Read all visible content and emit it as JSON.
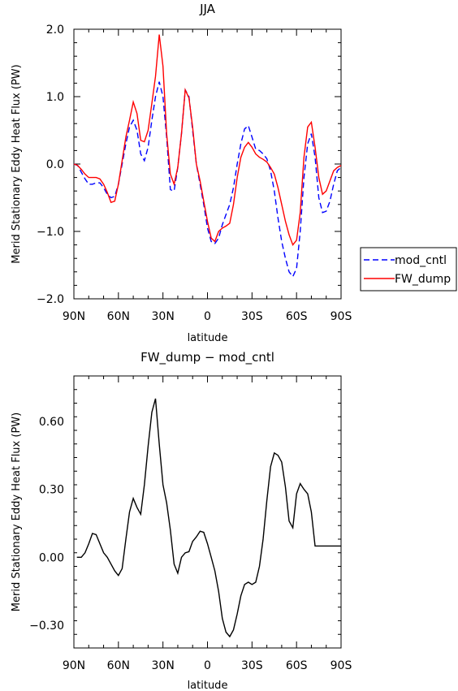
{
  "chart_data": [
    {
      "type": "line",
      "title": "JJA",
      "xlabel": "latitude",
      "ylabel": "Merid Stationary Eddy Heat Flux (PW)",
      "xlim": [
        90,
        -90
      ],
      "ylim": [
        -2.0,
        2.0
      ],
      "xticks": [
        90,
        60,
        30,
        0,
        -30,
        -60,
        -90
      ],
      "xtick_labels": [
        "90N",
        "60N",
        "30N",
        "0",
        "30S",
        "60S",
        "90S"
      ],
      "yticks": [
        -2.0,
        -1.0,
        0.0,
        1.0,
        2.0
      ],
      "ytick_labels": [
        "−2.0",
        "−1.0",
        "0.0",
        "1.0",
        "2.0"
      ],
      "grid": false,
      "legend": "right",
      "series": [
        {
          "name": "mod_cntl",
          "color": "#0000ff",
          "dash": "dashed",
          "x": [
            90,
            87.5,
            85,
            82.5,
            80,
            77.5,
            75,
            72.5,
            70,
            67.5,
            65,
            62.5,
            60,
            57.5,
            55,
            52.5,
            50,
            47.5,
            45,
            42.5,
            40,
            37.5,
            35,
            32.5,
            30,
            27.5,
            25,
            22.5,
            20,
            17.5,
            15,
            12.5,
            10,
            7.5,
            5,
            2.5,
            0,
            -2.5,
            -5,
            -7.5,
            -10,
            -12.5,
            -15,
            -17.5,
            -20,
            -22.5,
            -25,
            -27.5,
            -30,
            -32.5,
            -35,
            -37.5,
            -40,
            -42.5,
            -45,
            -47.5,
            -50,
            -52.5,
            -55,
            -57.5,
            -60,
            -62.5,
            -65,
            -67.5,
            -70,
            -72.5,
            -75,
            -77.5,
            -80,
            -82.5,
            -85,
            -87.5,
            -90
          ],
          "values": [
            0.0,
            -0.02,
            -0.12,
            -0.22,
            -0.3,
            -0.3,
            -0.28,
            -0.28,
            -0.35,
            -0.45,
            -0.5,
            -0.48,
            -0.3,
            0.0,
            0.3,
            0.55,
            0.65,
            0.5,
            0.15,
            0.05,
            0.25,
            0.65,
            1.0,
            1.22,
            1.0,
            0.4,
            -0.38,
            -0.4,
            -0.05,
            0.45,
            1.1,
            1.0,
            0.5,
            0.0,
            -0.3,
            -0.6,
            -0.95,
            -1.15,
            -1.18,
            -1.1,
            -0.9,
            -0.75,
            -0.6,
            -0.35,
            0.0,
            0.3,
            0.52,
            0.57,
            0.4,
            0.22,
            0.2,
            0.15,
            0.08,
            -0.1,
            -0.4,
            -0.8,
            -1.15,
            -1.4,
            -1.6,
            -1.67,
            -1.55,
            -1.0,
            -0.2,
            0.3,
            0.45,
            0.1,
            -0.5,
            -0.72,
            -0.7,
            -0.55,
            -0.3,
            -0.1,
            -0.05
          ]
        },
        {
          "name": "FW_dump",
          "color": "#ff0000",
          "dash": "solid",
          "x": [
            90,
            87.5,
            85,
            82.5,
            80,
            77.5,
            75,
            72.5,
            70,
            67.5,
            65,
            62.5,
            60,
            57.5,
            55,
            52.5,
            50,
            47.5,
            45,
            42.5,
            40,
            37.5,
            35,
            32.5,
            30,
            27.5,
            25,
            22.5,
            20,
            17.5,
            15,
            12.5,
            10,
            7.5,
            5,
            2.5,
            0,
            -2.5,
            -5,
            -7.5,
            -10,
            -12.5,
            -15,
            -17.5,
            -20,
            -22.5,
            -25,
            -27.5,
            -30,
            -32.5,
            -35,
            -37.5,
            -40,
            -42.5,
            -45,
            -47.5,
            -50,
            -52.5,
            -55,
            -57.5,
            -60,
            -62.5,
            -65,
            -67.5,
            -70,
            -72.5,
            -75,
            -77.5,
            -80,
            -82.5,
            -85,
            -87.5,
            -90
          ],
          "values": [
            0.0,
            -0.02,
            -0.08,
            -0.15,
            -0.2,
            -0.2,
            -0.2,
            -0.22,
            -0.3,
            -0.42,
            -0.57,
            -0.55,
            -0.3,
            0.05,
            0.4,
            0.65,
            0.92,
            0.75,
            0.35,
            0.33,
            0.5,
            0.9,
            1.3,
            1.92,
            1.45,
            0.45,
            -0.15,
            -0.3,
            -0.05,
            0.45,
            1.1,
            0.98,
            0.55,
            0.0,
            -0.25,
            -0.55,
            -0.85,
            -1.1,
            -1.15,
            -1.0,
            -0.95,
            -0.92,
            -0.88,
            -0.6,
            -0.2,
            0.1,
            0.25,
            0.32,
            0.25,
            0.15,
            0.1,
            0.07,
            0.03,
            -0.05,
            -0.15,
            -0.35,
            -0.6,
            -0.85,
            -1.05,
            -1.2,
            -1.13,
            -0.72,
            0.1,
            0.55,
            0.62,
            0.25,
            -0.2,
            -0.45,
            -0.4,
            -0.25,
            -0.1,
            -0.05,
            -0.02
          ]
        }
      ]
    },
    {
      "type": "line",
      "title": "FW_dump − mod_cntl",
      "xlabel": "latitude",
      "ylabel": "Merid Stationary Eddy Heat Flux (PW)",
      "xlim": [
        90,
        -90
      ],
      "ylim": [
        -0.4,
        0.8
      ],
      "xticks": [
        90,
        60,
        30,
        0,
        -30,
        -60,
        -90
      ],
      "xtick_labels": [
        "90N",
        "60N",
        "30N",
        "0",
        "30S",
        "60S",
        "90S"
      ],
      "yticks": [
        -0.3,
        0.0,
        0.3,
        0.6
      ],
      "ytick_labels": [
        "−0.30",
        "0.00",
        "0.30",
        "0.60"
      ],
      "grid": false,
      "series": [
        {
          "color": "#000000",
          "dash": "solid",
          "x": [
            88,
            85,
            82.5,
            80,
            77.5,
            75,
            72.5,
            70,
            67.5,
            65,
            62.5,
            60,
            57.5,
            55,
            52.5,
            50,
            47.5,
            45,
            42.5,
            40,
            37.5,
            35,
            32.5,
            30,
            27.5,
            25,
            22.5,
            20,
            17.5,
            15,
            12.5,
            10,
            7.5,
            5,
            2.5,
            0,
            -2.5,
            -5,
            -7.5,
            -10,
            -12.5,
            -15,
            -17.5,
            -20,
            -22.5,
            -25,
            -27.5,
            -30,
            -32.5,
            -35,
            -37.5,
            -40,
            -42.5,
            -45,
            -47.5,
            -50,
            -52.5,
            -55,
            -57.5,
            -60,
            -62.5,
            -65,
            -67.5,
            -70,
            -72.5,
            -75,
            -77.5,
            -80,
            -82.5,
            -85,
            -87.5,
            -90
          ],
          "values": [
            0.0,
            0.0,
            0.02,
            0.06,
            0.105,
            0.1,
            0.06,
            0.02,
            0.0,
            -0.03,
            -0.06,
            -0.08,
            -0.05,
            0.08,
            0.2,
            0.26,
            0.22,
            0.19,
            0.32,
            0.49,
            0.64,
            0.7,
            0.5,
            0.32,
            0.24,
            0.12,
            -0.03,
            -0.07,
            0.0,
            0.02,
            0.025,
            0.07,
            0.09,
            0.115,
            0.11,
            0.06,
            0.0,
            -0.06,
            -0.15,
            -0.27,
            -0.33,
            -0.35,
            -0.32,
            -0.25,
            -0.17,
            -0.12,
            -0.11,
            -0.12,
            -0.11,
            -0.04,
            0.08,
            0.25,
            0.4,
            0.46,
            0.45,
            0.42,
            0.31,
            0.16,
            0.13,
            0.28,
            0.325,
            0.3,
            0.28,
            0.2,
            0.05,
            0.05,
            0.05,
            0.05,
            0.05,
            0.05,
            0.05,
            0.05
          ]
        }
      ]
    }
  ]
}
